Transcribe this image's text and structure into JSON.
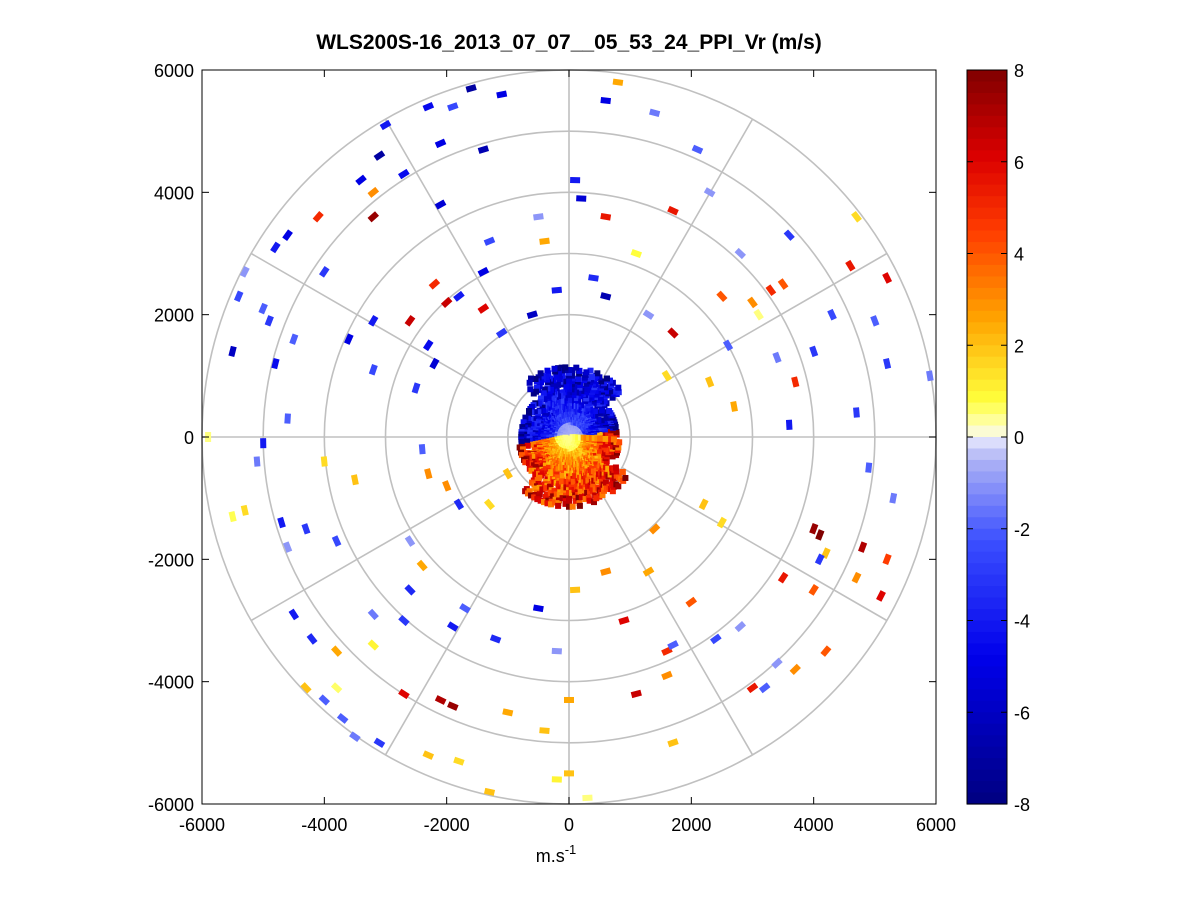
{
  "chart_data": {
    "type": "polar-ppi-scatter",
    "title": "WLS200S-16_2013_07_07__05_53_24_PPI_Vr (m/s)",
    "xlabel_base": "m.s",
    "xlabel_exp": "-1",
    "ylabel": "",
    "xlim": [
      -6000,
      6000
    ],
    "ylim": [
      -6000,
      6000
    ],
    "x_ticks": [
      -6000,
      -4000,
      -2000,
      0,
      2000,
      4000,
      6000
    ],
    "y_ticks": [
      6000,
      4000,
      2000,
      0,
      -2000,
      -4000,
      -6000
    ],
    "x_tick_labels": [
      "-6000",
      "-4000",
      "-2000",
      "0",
      "2000",
      "4000",
      "6000"
    ],
    "y_tick_labels": [
      "6000",
      "4000",
      "2000",
      "0",
      "-2000",
      "-4000",
      "-6000"
    ],
    "range_rings": [
      1000,
      2000,
      3000,
      4000,
      5000,
      6000
    ],
    "spoke_angles_deg": [
      0,
      30,
      60,
      90,
      120,
      150,
      180,
      210,
      240,
      270,
      300,
      330
    ],
    "colorbar": {
      "min": -8,
      "max": 8,
      "ticks": [
        8,
        6,
        4,
        2,
        0,
        -2,
        -4,
        -6,
        -8
      ],
      "tick_labels": [
        "8",
        "6",
        "4",
        "2",
        "0",
        "-2",
        "-4",
        "-6",
        "-8"
      ]
    },
    "near_field": {
      "description": "dense radial velocity field within ~1000 m",
      "negative_sector_deg": [
        10,
        190
      ],
      "positive_sector_deg": [
        190,
        370
      ]
    },
    "points": [
      {
        "x": -3200,
        "y": 3600,
        "v": 7.5
      },
      {
        "x": -4100,
        "y": 3600,
        "v": 5
      },
      {
        "x": -3200,
        "y": 4000,
        "v": 3
      },
      {
        "x": -2600,
        "y": 1900,
        "v": 6.5
      },
      {
        "x": -2200,
        "y": 2500,
        "v": 5
      },
      {
        "x": -2000,
        "y": 2200,
        "v": 6.5
      },
      {
        "x": -1400,
        "y": 2100,
        "v": 6
      },
      {
        "x": -2700,
        "y": -4200,
        "v": 6
      },
      {
        "x": -1900,
        "y": -4400,
        "v": 7.5
      },
      {
        "x": -2100,
        "y": -4300,
        "v": 7
      },
      {
        "x": 900,
        "y": -3000,
        "v": 6
      },
      {
        "x": 1600,
        "y": -3500,
        "v": 5
      },
      {
        "x": 1100,
        "y": -4200,
        "v": 6.5
      },
      {
        "x": 3500,
        "y": -2300,
        "v": 5.5
      },
      {
        "x": 4000,
        "y": -2500,
        "v": 4
      },
      {
        "x": 4700,
        "y": -2300,
        "v": 3
      },
      {
        "x": 5100,
        "y": -2600,
        "v": 6
      },
      {
        "x": 4800,
        "y": -1800,
        "v": 7
      },
      {
        "x": 5200,
        "y": -2000,
        "v": 4.5
      },
      {
        "x": 4100,
        "y": -1600,
        "v": 8
      },
      {
        "x": 4200,
        "y": -1900,
        "v": 2
      },
      {
        "x": 4000,
        "y": -1500,
        "v": 7.5
      },
      {
        "x": 3700,
        "y": 900,
        "v": 5
      },
      {
        "x": 4600,
        "y": 2800,
        "v": 5.5
      },
      {
        "x": 5200,
        "y": 2600,
        "v": 6
      },
      {
        "x": 3500,
        "y": 2500,
        "v": 4
      },
      {
        "x": 3300,
        "y": 2400,
        "v": 5
      },
      {
        "x": 3000,
        "y": 2200,
        "v": 3
      },
      {
        "x": 3100,
        "y": 2000,
        "v": 0.5
      },
      {
        "x": 1700,
        "y": 1700,
        "v": 6.5
      },
      {
        "x": 1700,
        "y": 3700,
        "v": 5.5
      },
      {
        "x": 1100,
        "y": 3000,
        "v": 0.8
      },
      {
        "x": 4700,
        "y": 3600,
        "v": 1.5
      },
      {
        "x": 3000,
        "y": -4100,
        "v": 5.5
      },
      {
        "x": 3700,
        "y": -3800,
        "v": 3
      },
      {
        "x": 4200,
        "y": -3500,
        "v": 4
      },
      {
        "x": 1600,
        "y": -3900,
        "v": 3
      },
      {
        "x": 2000,
        "y": -2700,
        "v": 4
      },
      {
        "x": 100,
        "y": -2500,
        "v": 2
      },
      {
        "x": 600,
        "y": -2200,
        "v": 3
      },
      {
        "x": 1300,
        "y": -2200,
        "v": 2.5
      },
      {
        "x": 1700,
        "y": -5000,
        "v": 2
      },
      {
        "x": -1000,
        "y": -4500,
        "v": 2.5
      },
      {
        "x": -400,
        "y": -4800,
        "v": 2
      },
      {
        "x": 0,
        "y": -4300,
        "v": 2.5
      },
      {
        "x": -200,
        "y": -5600,
        "v": 1
      },
      {
        "x": 0,
        "y": -5500,
        "v": 2
      },
      {
        "x": 300,
        "y": -5900,
        "v": 0.5
      },
      {
        "x": -1300,
        "y": -5800,
        "v": 2
      },
      {
        "x": -2300,
        "y": -5200,
        "v": 2
      },
      {
        "x": -1800,
        "y": -5300,
        "v": 1.5
      },
      {
        "x": -3800,
        "y": -4100,
        "v": 0.6
      },
      {
        "x": -4300,
        "y": -4100,
        "v": 2
      },
      {
        "x": -5300,
        "y": -1200,
        "v": 1.5
      },
      {
        "x": -5500,
        "y": -1300,
        "v": 0.7
      },
      {
        "x": -5900,
        "y": 0,
        "v": 0.5
      },
      {
        "x": -3800,
        "y": -3500,
        "v": 2.5
      },
      {
        "x": -3200,
        "y": -3400,
        "v": 1
      },
      {
        "x": -2400,
        "y": -2100,
        "v": 2.5
      },
      {
        "x": -2300,
        "y": -600,
        "v": 3
      },
      {
        "x": -2000,
        "y": -800,
        "v": 3
      },
      {
        "x": -1300,
        "y": -1100,
        "v": 1.5
      },
      {
        "x": -1000,
        "y": -600,
        "v": 2
      },
      {
        "x": -4000,
        "y": -400,
        "v": 1.5
      },
      {
        "x": -3500,
        "y": -700,
        "v": 2
      },
      {
        "x": 600,
        "y": 3600,
        "v": 5.5
      },
      {
        "x": -400,
        "y": 3200,
        "v": 2.5
      },
      {
        "x": 800,
        "y": 5800,
        "v": 2.5
      },
      {
        "x": 2500,
        "y": 2300,
        "v": 4
      },
      {
        "x": 2300,
        "y": 900,
        "v": 2
      },
      {
        "x": 1600,
        "y": 1000,
        "v": 1.5
      },
      {
        "x": 2700,
        "y": 500,
        "v": 2.5
      },
      {
        "x": 1400,
        "y": -1500,
        "v": 3
      },
      {
        "x": 2200,
        "y": -1100,
        "v": 2
      },
      {
        "x": 2500,
        "y": -1400,
        "v": 1.5
      },
      {
        "x": -3000,
        "y": 5100,
        "v": -4
      },
      {
        "x": -2300,
        "y": 5400,
        "v": -4.5
      },
      {
        "x": -2100,
        "y": 4800,
        "v": -5
      },
      {
        "x": -1400,
        "y": 4700,
        "v": -6.5
      },
      {
        "x": -1100,
        "y": 5600,
        "v": -5
      },
      {
        "x": -1900,
        "y": 5400,
        "v": -2.5
      },
      {
        "x": -1600,
        "y": 5700,
        "v": -7
      },
      {
        "x": -2700,
        "y": 4300,
        "v": -4.5
      },
      {
        "x": -2100,
        "y": 3800,
        "v": -5.5
      },
      {
        "x": -3400,
        "y": 4200,
        "v": -5
      },
      {
        "x": -3100,
        "y": 4600,
        "v": -7
      },
      {
        "x": -4600,
        "y": 3300,
        "v": -5
      },
      {
        "x": -4800,
        "y": 3100,
        "v": -4
      },
      {
        "x": -4000,
        "y": 2700,
        "v": -3
      },
      {
        "x": -5300,
        "y": 2700,
        "v": -1
      },
      {
        "x": -5400,
        "y": 2300,
        "v": -2.5
      },
      {
        "x": -5000,
        "y": 2100,
        "v": -2
      },
      {
        "x": -5500,
        "y": 1400,
        "v": -6
      },
      {
        "x": -4900,
        "y": 1900,
        "v": -3
      },
      {
        "x": -4500,
        "y": 1600,
        "v": -2
      },
      {
        "x": -4800,
        "y": 1200,
        "v": -4.5
      },
      {
        "x": -4600,
        "y": 300,
        "v": -2
      },
      {
        "x": -5000,
        "y": -100,
        "v": -4
      },
      {
        "x": -5100,
        "y": -400,
        "v": -1.5
      },
      {
        "x": -4700,
        "y": -1400,
        "v": -4
      },
      {
        "x": -4300,
        "y": -1500,
        "v": -3
      },
      {
        "x": -4600,
        "y": -1800,
        "v": -1
      },
      {
        "x": -3800,
        "y": -1700,
        "v": -2.5
      },
      {
        "x": -4500,
        "y": -2900,
        "v": -4
      },
      {
        "x": -4200,
        "y": -3300,
        "v": -3.5
      },
      {
        "x": -4000,
        "y": -4300,
        "v": -2
      },
      {
        "x": -3700,
        "y": -4600,
        "v": -2
      },
      {
        "x": -3500,
        "y": -4900,
        "v": -1.5
      },
      {
        "x": -3100,
        "y": -5000,
        "v": -3
      },
      {
        "x": -3200,
        "y": -2900,
        "v": -1.5
      },
      {
        "x": -2700,
        "y": -3000,
        "v": -3
      },
      {
        "x": -2600,
        "y": -2500,
        "v": -3.5
      },
      {
        "x": -1900,
        "y": -3100,
        "v": -4
      },
      {
        "x": -1700,
        "y": -2800,
        "v": -2
      },
      {
        "x": -1200,
        "y": -3300,
        "v": -3.5
      },
      {
        "x": -500,
        "y": -2800,
        "v": -5
      },
      {
        "x": -200,
        "y": -3500,
        "v": -1
      },
      {
        "x": 1700,
        "y": -3400,
        "v": -2
      },
      {
        "x": 2400,
        "y": -3300,
        "v": -2.5
      },
      {
        "x": 2800,
        "y": -3100,
        "v": -1
      },
      {
        "x": 3400,
        "y": -3700,
        "v": -1
      },
      {
        "x": 3200,
        "y": -4100,
        "v": -2
      },
      {
        "x": 4100,
        "y": -2000,
        "v": -3
      },
      {
        "x": 5300,
        "y": -1000,
        "v": -1.5
      },
      {
        "x": 4900,
        "y": -500,
        "v": -2
      },
      {
        "x": 3600,
        "y": 200,
        "v": -4
      },
      {
        "x": 4700,
        "y": 400,
        "v": -3
      },
      {
        "x": 5200,
        "y": 1200,
        "v": -3
      },
      {
        "x": 5900,
        "y": 1000,
        "v": -1.5
      },
      {
        "x": 5000,
        "y": 1900,
        "v": -2
      },
      {
        "x": 4300,
        "y": 2000,
        "v": -2.5
      },
      {
        "x": 4000,
        "y": 1400,
        "v": -3
      },
      {
        "x": 3400,
        "y": 1300,
        "v": -1.5
      },
      {
        "x": 2600,
        "y": 1500,
        "v": -2
      },
      {
        "x": 2800,
        "y": 3000,
        "v": -1
      },
      {
        "x": 3600,
        "y": 3300,
        "v": -3
      },
      {
        "x": 2100,
        "y": 4700,
        "v": -2
      },
      {
        "x": 2300,
        "y": 4000,
        "v": -1
      },
      {
        "x": 1400,
        "y": 5300,
        "v": -1.5
      },
      {
        "x": 600,
        "y": 5500,
        "v": -5
      },
      {
        "x": 100,
        "y": 4200,
        "v": -4
      },
      {
        "x": 200,
        "y": 3900,
        "v": -5.5
      },
      {
        "x": -500,
        "y": 3600,
        "v": -1
      },
      {
        "x": -1300,
        "y": 3200,
        "v": -2.5
      },
      {
        "x": -1800,
        "y": 2300,
        "v": -4
      },
      {
        "x": -1400,
        "y": 2700,
        "v": -5
      },
      {
        "x": -1100,
        "y": 1700,
        "v": -3
      },
      {
        "x": -2300,
        "y": 1500,
        "v": -4.5
      },
      {
        "x": -3200,
        "y": 1900,
        "v": -4
      },
      {
        "x": -3600,
        "y": 1600,
        "v": -5
      },
      {
        "x": -3200,
        "y": 1100,
        "v": -2.5
      },
      {
        "x": -2500,
        "y": 800,
        "v": -3
      },
      {
        "x": -2200,
        "y": 1200,
        "v": -5.5
      },
      {
        "x": -2400,
        "y": -200,
        "v": -2
      },
      {
        "x": -1800,
        "y": -1100,
        "v": -3.5
      },
      {
        "x": -2600,
        "y": -1700,
        "v": -1
      },
      {
        "x": 400,
        "y": 2600,
        "v": -3.5
      },
      {
        "x": -200,
        "y": 2400,
        "v": -4
      },
      {
        "x": 600,
        "y": 2300,
        "v": -6.5
      },
      {
        "x": 1300,
        "y": 2000,
        "v": -1
      },
      {
        "x": -600,
        "y": 2000,
        "v": -6
      }
    ]
  }
}
